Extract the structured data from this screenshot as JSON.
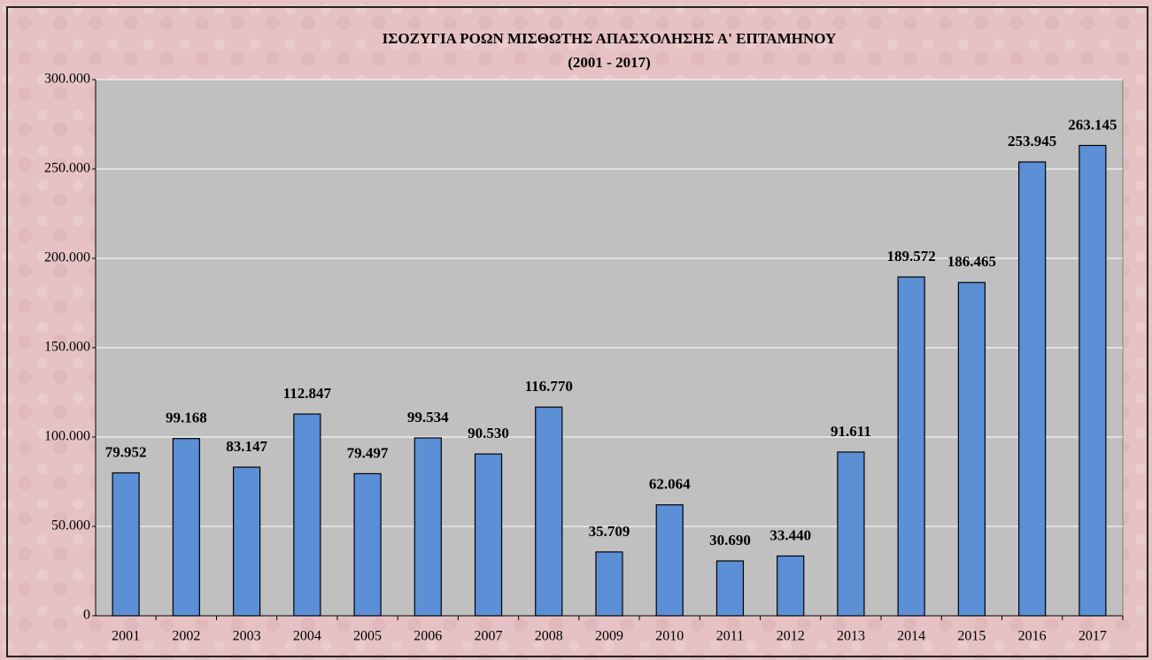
{
  "chart_data": {
    "type": "bar",
    "title": "ΙΣΟΖΥΓΙΑ ΡΟΩΝ ΜΙΣΘΩΤΗΣ ΑΠΑΣΧΟΛΗΣΗΣ Α' ΕΠΤΑΜΗΝΟΥ",
    "subtitle": "(2001 - 2017)",
    "categories": [
      "2001",
      "2002",
      "2003",
      "2004",
      "2005",
      "2006",
      "2007",
      "2008",
      "2009",
      "2010",
      "2011",
      "2012",
      "2013",
      "2014",
      "2015",
      "2016",
      "2017"
    ],
    "values": [
      79952,
      99168,
      83147,
      112847,
      79497,
      99534,
      90530,
      116770,
      35709,
      62064,
      30690,
      33440,
      91611,
      189572,
      186465,
      253945,
      263145
    ],
    "value_labels": [
      "79.952",
      "99.168",
      "83.147",
      "112.847",
      "79.497",
      "99.534",
      "90.530",
      "116.770",
      "35.709",
      "62.064",
      "30.690",
      "33.440",
      "91.611",
      "189.572",
      "186.465",
      "253.945",
      "263.145"
    ],
    "color": "#5b8fd6",
    "ylim": [
      0,
      300000
    ],
    "yticks": [
      0,
      {
        "value": 50000,
        "label": "50.000"
      },
      {
        "value": 100000,
        "label": "100.000"
      },
      {
        "value": 150000,
        "label": "150.000"
      },
      {
        "value": 200000,
        "label": "200.000"
      },
      {
        "value": 250000,
        "label": "250.000"
      },
      {
        "value": 300000,
        "label": "300.000"
      }
    ],
    "grid": true
  }
}
